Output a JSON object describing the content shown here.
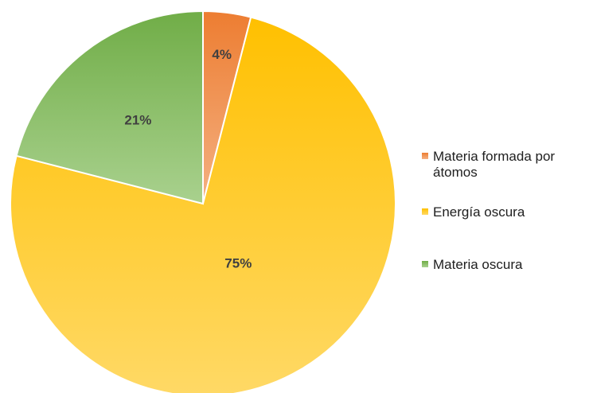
{
  "chart_data": {
    "type": "pie",
    "categories": [
      "Materia formada por átomos",
      "Energía oscura",
      "Materia oscura"
    ],
    "values": [
      4,
      75,
      21
    ],
    "data_labels": [
      "4%",
      "75%",
      "21%"
    ],
    "colors": {
      "Materia formada por átomos": {
        "top": "#ED7D31",
        "bottom": "#F4B183"
      },
      "Energía oscura": {
        "top": "#FFC000",
        "bottom": "#FFD966"
      },
      "Materia oscura": {
        "top": "#70AD47",
        "bottom": "#A9D18E"
      }
    },
    "legend_lines": [
      [
        "Materia formada por",
        "átomos"
      ],
      [
        "Energía oscura"
      ],
      [
        "Materia oscura"
      ]
    ],
    "start_angle_deg": 0,
    "direction": "clockwise",
    "legend_position": "right",
    "title": ""
  }
}
